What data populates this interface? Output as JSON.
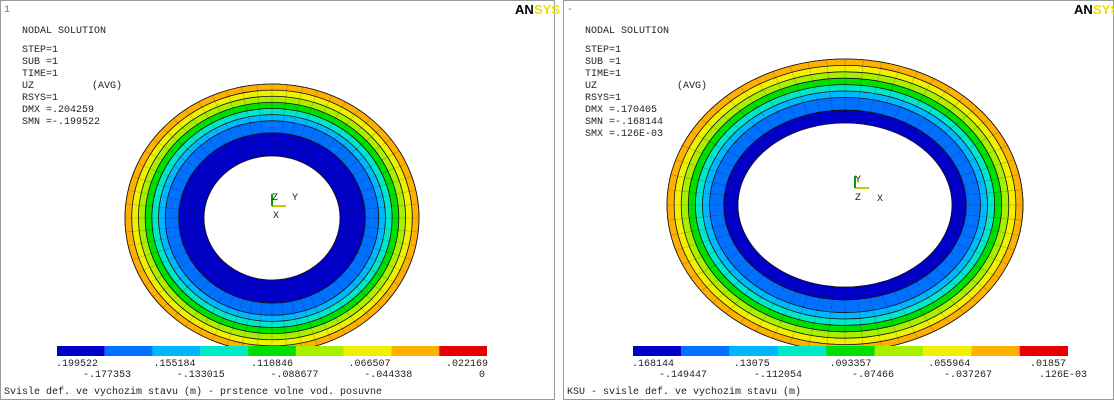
{
  "panels": [
    {
      "window_number": "1",
      "logo": {
        "an": "AN",
        "sys": "SYS"
      },
      "title": "NODAL SOLUTION",
      "info": [
        "STEP=1",
        "SUB =1",
        "TIME=1",
        "UZ",
        "RSYS=1",
        "DMX =.204259",
        "SMN =-.199522"
      ],
      "avg": "(AVG)",
      "triad": [
        "Z",
        "Y",
        "X"
      ],
      "legend_top": [
        ".199522",
        ".155184",
        ".110846",
        ".066507",
        ".022169"
      ],
      "legend_bottom": [
        "-.177353",
        "-.133015",
        "-.088677",
        "-.044338",
        "0"
      ],
      "caption": "Svisle def. ve vychozim stavu (m) - prstence volne vod. posuvne"
    },
    {
      "window_number": "-",
      "logo": {
        "an": "AN",
        "sys": "SYS"
      },
      "title": "NODAL SOLUTION",
      "info": [
        "STEP=1",
        "SUB =1",
        "TIME=1",
        "UZ",
        "RSYS=1",
        "DMX =.170405",
        "SMN =-.168144",
        "SMX =.126E-03"
      ],
      "avg": "(AVG)",
      "triad": [
        "Y",
        "Z",
        "X"
      ],
      "legend_top": [
        ".168144",
        ".13075",
        ".093357",
        ".055964",
        ".01857"
      ],
      "legend_bottom": [
        "-.149447",
        "-.112054",
        "-.07466",
        "-.037267",
        ".126E-03"
      ],
      "caption": "KSU - svisle def. ve vychozim stavu (m)"
    }
  ]
}
